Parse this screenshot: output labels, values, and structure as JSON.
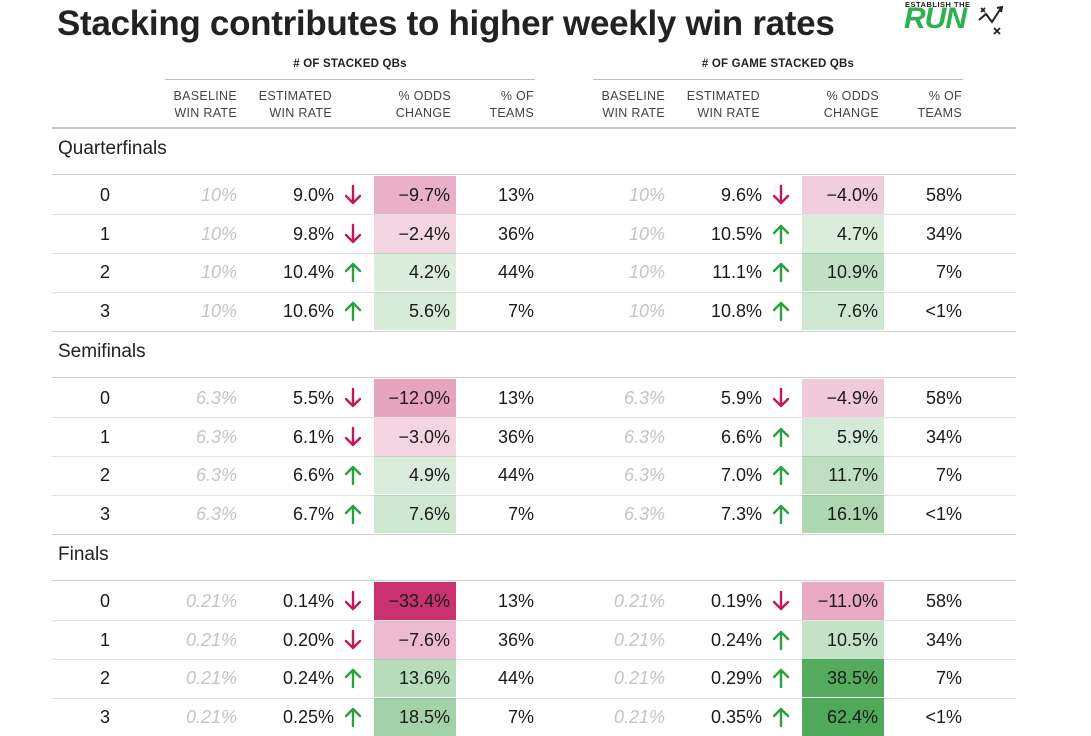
{
  "title": "Stacking contributes to higher weekly win rates",
  "logo": {
    "small": "ESTABLISH THE",
    "big": "RUN"
  },
  "groups": [
    {
      "label": "# OF STACKED QBs"
    },
    {
      "label": "# OF GAME STACKED QBs"
    }
  ],
  "columns": {
    "baseline": [
      "BASELINE",
      "WIN RATE"
    ],
    "estimated": [
      "ESTIMATED",
      "WIN RATE"
    ],
    "odds": [
      "% ODDS",
      "CHANGE"
    ],
    "teams": [
      "% OF",
      "TEAMS"
    ]
  },
  "colors": {
    "positive": "#2e9e45",
    "negative": "#c2185b",
    "up_arrow": "#27a23f",
    "down_arrow": "#c2185b"
  },
  "chart_data": {
    "type": "table",
    "sections": [
      {
        "name": "Quarterfinals",
        "rows": [
          {
            "n": "0",
            "a": {
              "baseline": "10%",
              "est": "9.0%",
              "dir": "down",
              "odds": "−9.7%",
              "odds_value": -9.7,
              "teams": "13%"
            },
            "b": {
              "baseline": "10%",
              "est": "9.6%",
              "dir": "down",
              "odds": "−4.0%",
              "odds_value": -4.0,
              "teams": "58%"
            }
          },
          {
            "n": "1",
            "a": {
              "baseline": "10%",
              "est": "9.8%",
              "dir": "down",
              "odds": "−2.4%",
              "odds_value": -2.4,
              "teams": "36%"
            },
            "b": {
              "baseline": "10%",
              "est": "10.5%",
              "dir": "up",
              "odds": "4.7%",
              "odds_value": 4.7,
              "teams": "34%"
            }
          },
          {
            "n": "2",
            "a": {
              "baseline": "10%",
              "est": "10.4%",
              "dir": "up",
              "odds": "4.2%",
              "odds_value": 4.2,
              "teams": "44%"
            },
            "b": {
              "baseline": "10%",
              "est": "11.1%",
              "dir": "up",
              "odds": "10.9%",
              "odds_value": 10.9,
              "teams": "7%"
            }
          },
          {
            "n": "3",
            "a": {
              "baseline": "10%",
              "est": "10.6%",
              "dir": "up",
              "odds": "5.6%",
              "odds_value": 5.6,
              "teams": "7%"
            },
            "b": {
              "baseline": "10%",
              "est": "10.8%",
              "dir": "up",
              "odds": "7.6%",
              "odds_value": 7.6,
              "teams": "<1%"
            }
          }
        ]
      },
      {
        "name": "Semifinals",
        "rows": [
          {
            "n": "0",
            "a": {
              "baseline": "6.3%",
              "est": "5.5%",
              "dir": "down",
              "odds": "−12.0%",
              "odds_value": -12.0,
              "teams": "13%"
            },
            "b": {
              "baseline": "6.3%",
              "est": "5.9%",
              "dir": "down",
              "odds": "−4.9%",
              "odds_value": -4.9,
              "teams": "58%"
            }
          },
          {
            "n": "1",
            "a": {
              "baseline": "6.3%",
              "est": "6.1%",
              "dir": "down",
              "odds": "−3.0%",
              "odds_value": -3.0,
              "teams": "36%"
            },
            "b": {
              "baseline": "6.3%",
              "est": "6.6%",
              "dir": "up",
              "odds": "5.9%",
              "odds_value": 5.9,
              "teams": "34%"
            }
          },
          {
            "n": "2",
            "a": {
              "baseline": "6.3%",
              "est": "6.6%",
              "dir": "up",
              "odds": "4.9%",
              "odds_value": 4.9,
              "teams": "44%"
            },
            "b": {
              "baseline": "6.3%",
              "est": "7.0%",
              "dir": "up",
              "odds": "11.7%",
              "odds_value": 11.7,
              "teams": "7%"
            }
          },
          {
            "n": "3",
            "a": {
              "baseline": "6.3%",
              "est": "6.7%",
              "dir": "up",
              "odds": "7.6%",
              "odds_value": 7.6,
              "teams": "7%"
            },
            "b": {
              "baseline": "6.3%",
              "est": "7.3%",
              "dir": "up",
              "odds": "16.1%",
              "odds_value": 16.1,
              "teams": "<1%"
            }
          }
        ]
      },
      {
        "name": "Finals",
        "rows": [
          {
            "n": "0",
            "a": {
              "baseline": "0.21%",
              "est": "0.14%",
              "dir": "down",
              "odds": "−33.4%",
              "odds_value": -33.4,
              "teams": "13%"
            },
            "b": {
              "baseline": "0.21%",
              "est": "0.19%",
              "dir": "down",
              "odds": "−11.0%",
              "odds_value": -11.0,
              "teams": "58%"
            }
          },
          {
            "n": "1",
            "a": {
              "baseline": "0.21%",
              "est": "0.20%",
              "dir": "down",
              "odds": "−7.6%",
              "odds_value": -7.6,
              "teams": "36%"
            },
            "b": {
              "baseline": "0.21%",
              "est": "0.24%",
              "dir": "up",
              "odds": "10.5%",
              "odds_value": 10.5,
              "teams": "34%"
            }
          },
          {
            "n": "2",
            "a": {
              "baseline": "0.21%",
              "est": "0.24%",
              "dir": "up",
              "odds": "13.6%",
              "odds_value": 13.6,
              "teams": "44%"
            },
            "b": {
              "baseline": "0.21%",
              "est": "0.29%",
              "dir": "up",
              "odds": "38.5%",
              "odds_value": 38.5,
              "teams": "7%"
            }
          },
          {
            "n": "3",
            "a": {
              "baseline": "0.21%",
              "est": "0.25%",
              "dir": "up",
              "odds": "18.5%",
              "odds_value": 18.5,
              "teams": "7%"
            },
            "b": {
              "baseline": "0.21%",
              "est": "0.35%",
              "dir": "up",
              "odds": "62.4%",
              "odds_value": 62.4,
              "teams": "<1%"
            }
          }
        ]
      }
    ]
  }
}
